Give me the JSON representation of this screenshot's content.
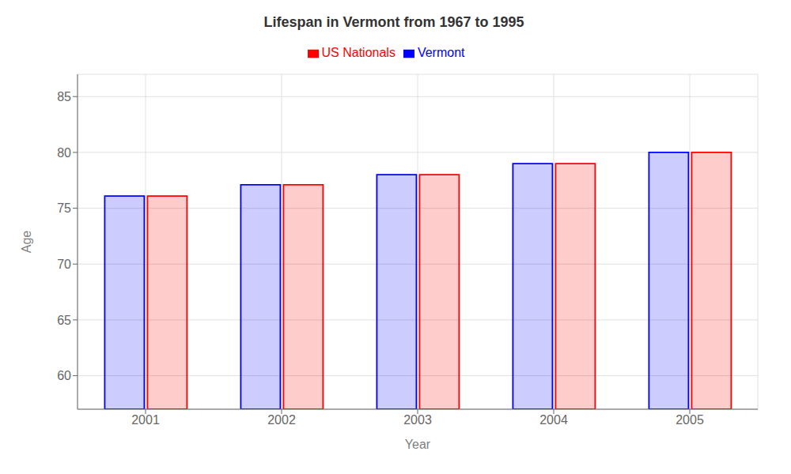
{
  "chart_data": {
    "type": "bar",
    "title": "Lifespan in Vermont from 1967 to 1995",
    "xlabel": "Year",
    "ylabel": "Age",
    "categories": [
      "2001",
      "2002",
      "2003",
      "2004",
      "2005"
    ],
    "series": [
      {
        "name": "Vermont",
        "color": "#0000ff",
        "values": [
          76.1,
          77.1,
          78.0,
          79.0,
          80.0
        ]
      },
      {
        "name": "US Nationals",
        "color": "#ff0000",
        "values": [
          76.1,
          77.1,
          78.0,
          79.0,
          80.0
        ]
      }
    ],
    "ylim": [
      57,
      87
    ],
    "yticks": [
      60,
      65,
      70,
      75,
      80,
      85
    ],
    "grid": true,
    "legend": "top"
  }
}
